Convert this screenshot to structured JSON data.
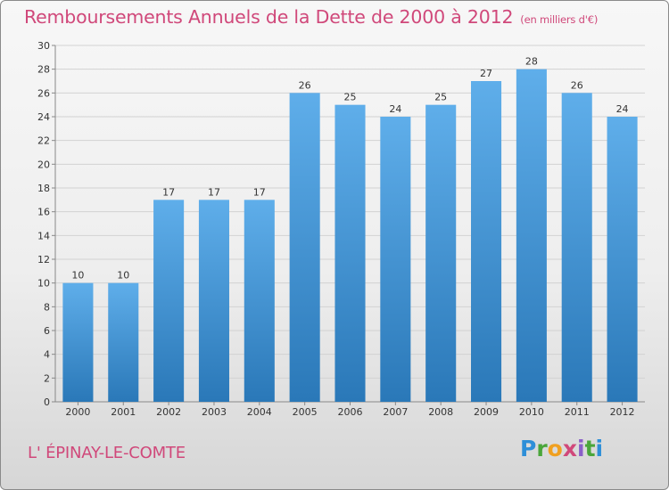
{
  "header": {
    "title": "Remboursements Annuels de la Dette de 2000 à 2012",
    "subtitle": "(en milliers d'€)"
  },
  "footer": {
    "commune": "L' ÉPINAY-LE-COMTE",
    "logo_letters": [
      "P",
      "r",
      "o",
      "x",
      "i",
      "t",
      "i"
    ],
    "logo_colors": [
      "#2e8fd8",
      "#4aa63a",
      "#f0a020",
      "#d0487a",
      "#8a5fc8",
      "#4aa63a",
      "#2e8fd8"
    ]
  },
  "colors": {
    "accent": "#d0487a",
    "bar_top": "#5faeea",
    "bar_bottom": "#2a78b8"
  },
  "chart_data": {
    "type": "bar",
    "title": "Remboursements Annuels de la Dette de 2000 à 2012",
    "subtitle": "(en milliers d'€)",
    "categories": [
      "2000",
      "2001",
      "2002",
      "2003",
      "2004",
      "2005",
      "2006",
      "2007",
      "2008",
      "2009",
      "2010",
      "2011",
      "2012"
    ],
    "values": [
      10,
      10,
      17,
      17,
      17,
      26,
      25,
      24,
      25,
      27,
      28,
      26,
      24
    ],
    "ylim": [
      0,
      30
    ],
    "yticks": [
      0,
      2,
      4,
      6,
      8,
      10,
      12,
      14,
      16,
      18,
      20,
      22,
      24,
      26,
      28,
      30
    ],
    "grid": true,
    "data_labels": true
  }
}
